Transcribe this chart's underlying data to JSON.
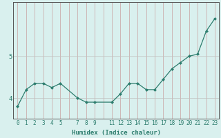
{
  "xlabel": "Humidex (Indice chaleur)",
  "ylabel": "",
  "x_values": [
    0,
    1,
    2,
    3,
    4,
    5,
    7,
    8,
    9,
    11,
    12,
    13,
    14,
    15,
    16,
    17,
    18,
    19,
    20,
    21,
    22,
    23
  ],
  "y_values": [
    3.8,
    4.2,
    4.35,
    4.35,
    4.25,
    4.35,
    4.0,
    3.9,
    3.9,
    3.9,
    4.1,
    4.35,
    4.35,
    4.2,
    4.2,
    4.45,
    4.7,
    4.85,
    5.0,
    5.05,
    5.6,
    5.9
  ],
  "line_color": "#2d7d6e",
  "marker": "D",
  "marker_size": 2.5,
  "bg_color": "#d9f0ee",
  "grid_color_v": "#c0c0c0",
  "grid_color_h": "#c0c0c0",
  "axis_label_color": "#2d7d6e",
  "tick_label_color": "#2d7d6e",
  "ylim": [
    3.5,
    6.3
  ],
  "yticks": [
    4,
    5
  ],
  "all_xticks": [
    0,
    1,
    2,
    3,
    4,
    5,
    6,
    7,
    8,
    9,
    10,
    11,
    12,
    13,
    14,
    15,
    16,
    17,
    18,
    19,
    20,
    21,
    22,
    23
  ],
  "label_xticks": [
    0,
    1,
    2,
    3,
    4,
    5,
    7,
    8,
    9,
    11,
    12,
    13,
    14,
    15,
    16,
    17,
    18,
    19,
    20,
    21,
    22,
    23
  ],
  "label_fontsize": 6.5,
  "tick_fontsize": 5.5
}
